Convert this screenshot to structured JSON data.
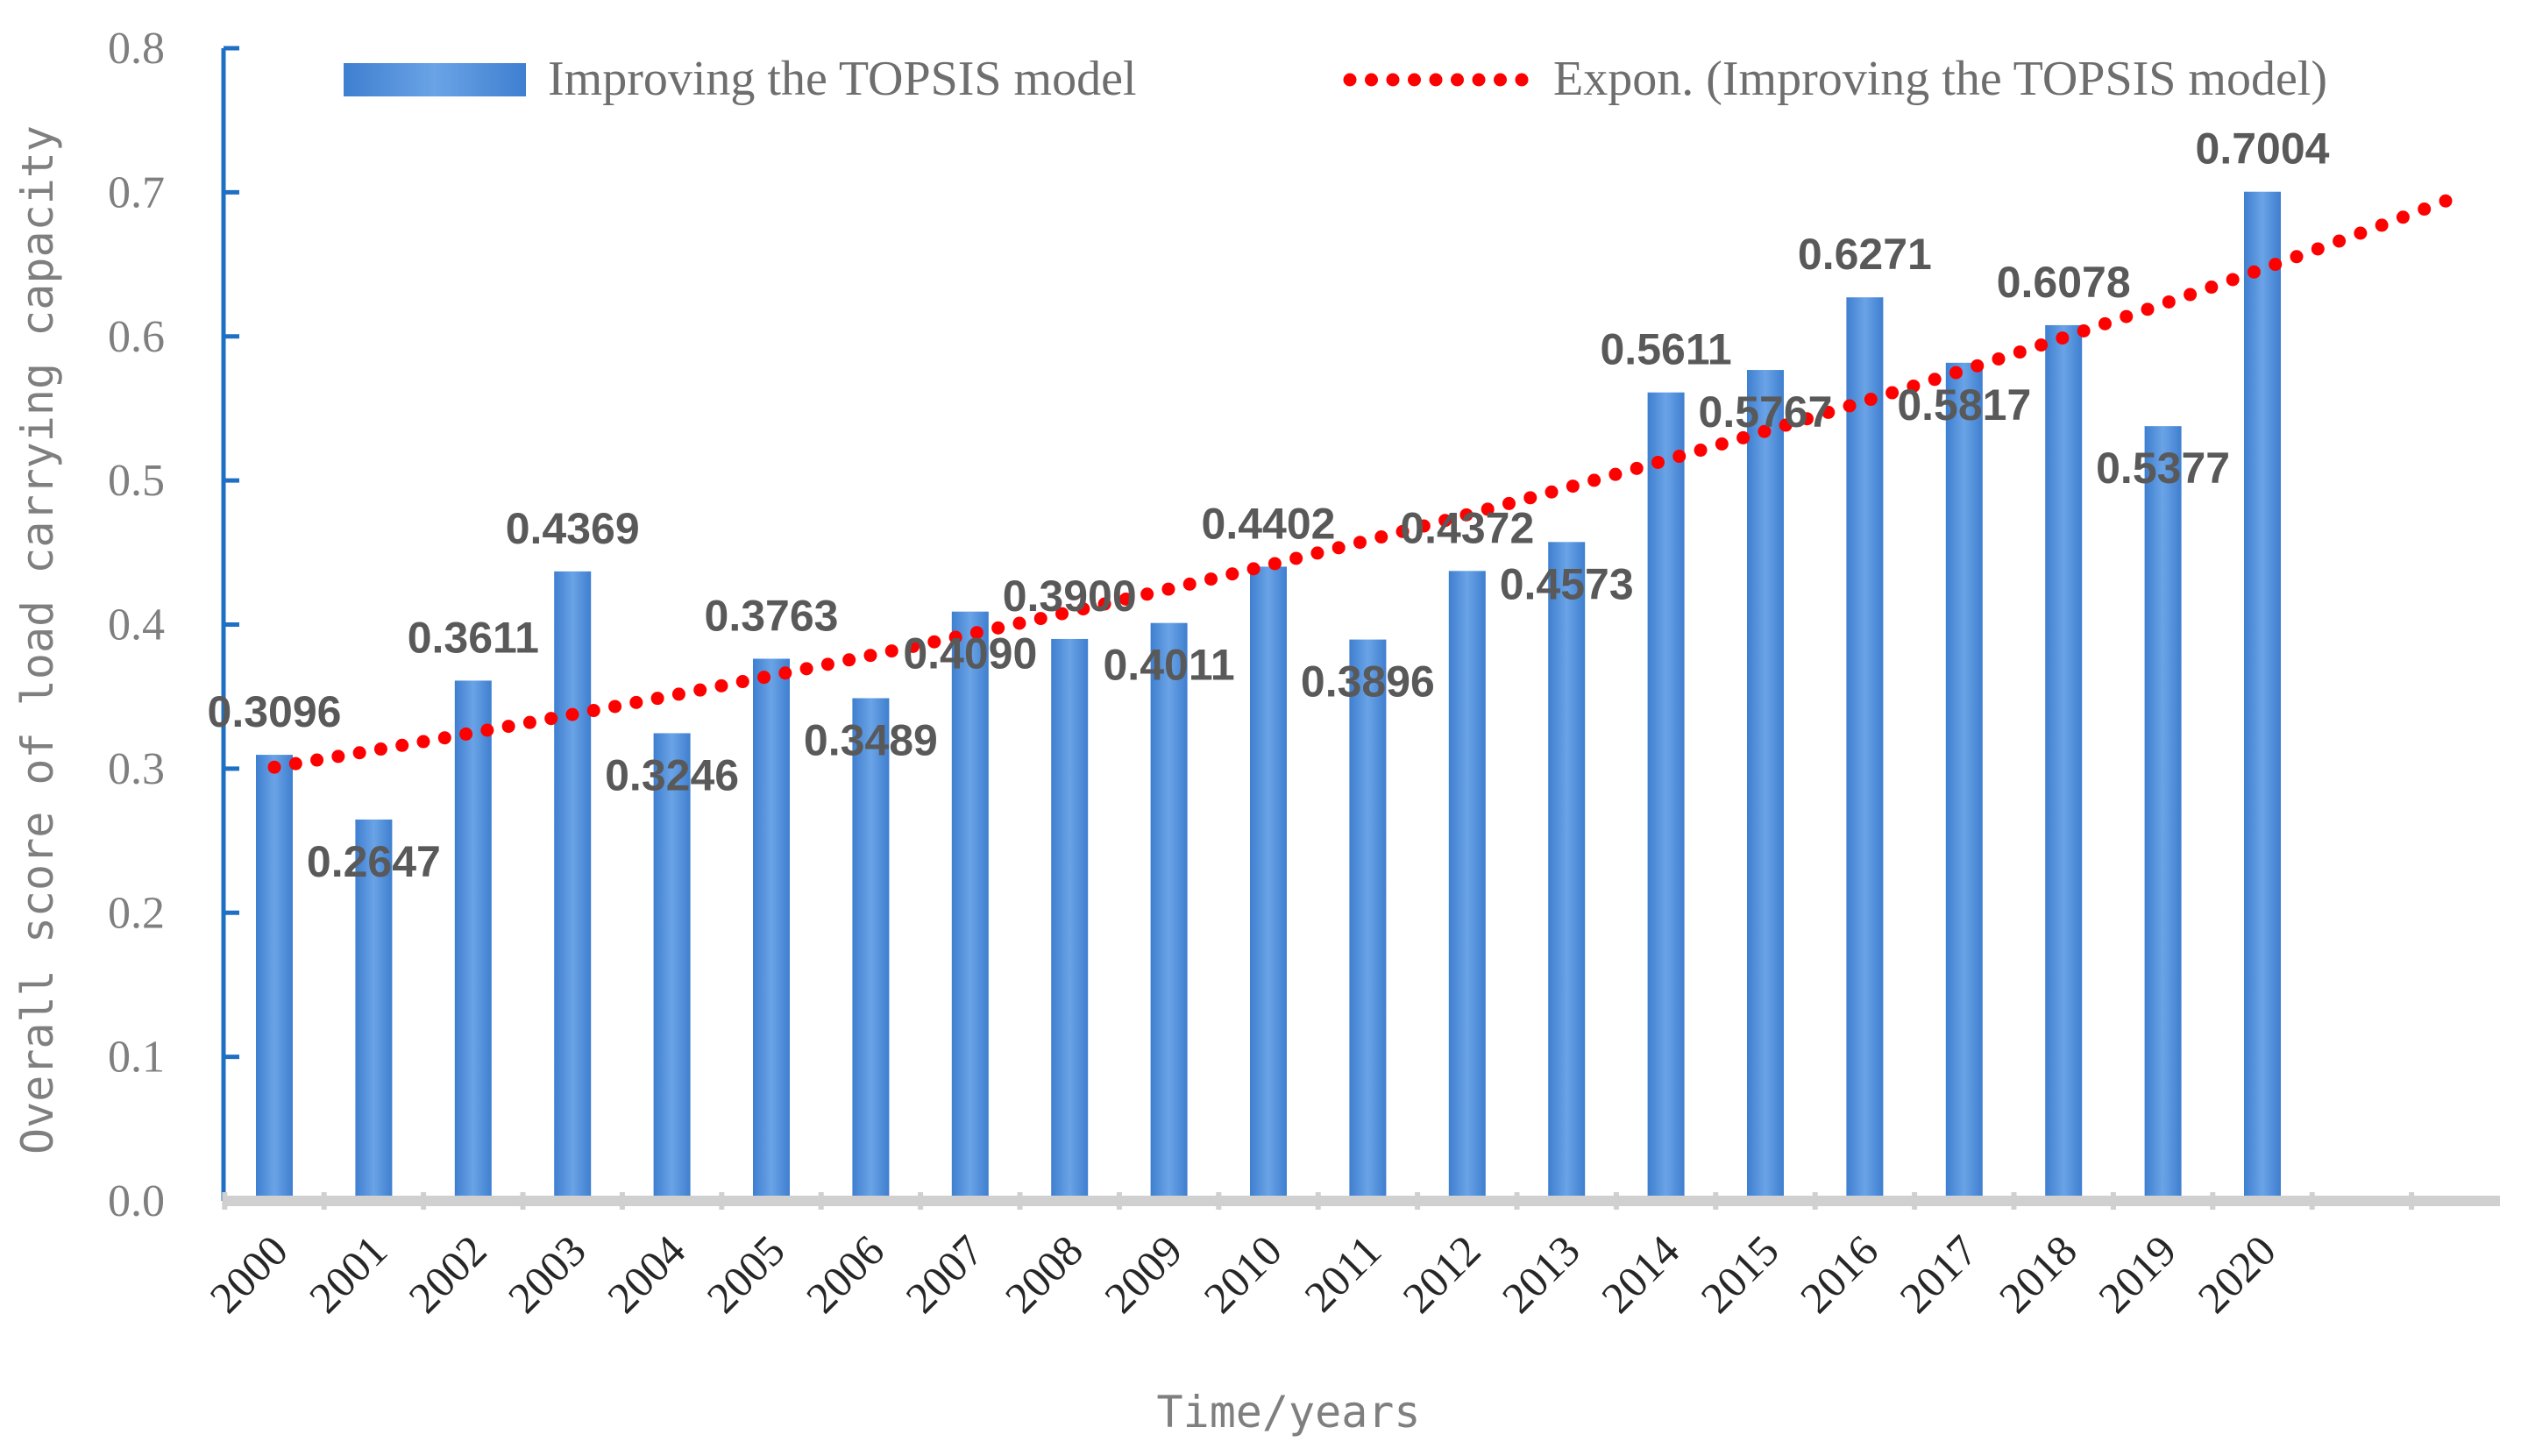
{
  "chart_data": {
    "type": "bar",
    "title": "",
    "xlabel": "Time/years",
    "ylabel": "Overall score of load carrying capacity",
    "ylim": [
      0,
      0.8
    ],
    "y_ticks": [
      "0.0",
      "0.1",
      "0.2",
      "0.3",
      "0.4",
      "0.5",
      "0.6",
      "0.7",
      "0.8"
    ],
    "categories": [
      "2000",
      "2001",
      "2002",
      "2003",
      "2004",
      "2005",
      "2006",
      "2007",
      "2008",
      "2009",
      "2010",
      "2011",
      "2012",
      "2013",
      "2014",
      "2015",
      "2016",
      "2017",
      "2018",
      "2019",
      "2020"
    ],
    "series": [
      {
        "name": "Improving the TOPSIS model",
        "values": [
          0.3096,
          0.2647,
          0.3611,
          0.4369,
          0.3246,
          0.3763,
          0.3489,
          0.409,
          0.39,
          0.4011,
          0.4402,
          0.3896,
          0.4372,
          0.4573,
          0.5611,
          0.5767,
          0.6271,
          0.5817,
          0.6078,
          0.5377,
          0.7004
        ],
        "data_labels": [
          "0.3096",
          "0.2647",
          "0.3611",
          "0.4369",
          "0.3246",
          "0.3763",
          "0.3489",
          "0.4090",
          "0.3900",
          "0.4011",
          "0.4402",
          "0.3896",
          "0.4372",
          "0.4573",
          "0.5611",
          "0.5767",
          "0.6271",
          "0.5817",
          "0.6078",
          "0.5377",
          "0.7004"
        ],
        "label_positions": [
          "above",
          "below",
          "above",
          "above",
          "below",
          "above",
          "below",
          "below",
          "above",
          "below",
          "above",
          "below",
          "above",
          "below",
          "above",
          "below",
          "above",
          "below",
          "above",
          "below",
          "above"
        ],
        "color": "#4a89d6"
      }
    ],
    "trendline": {
      "name": "Expon. (Improving the TOPSIS model)",
      "type": "exponential",
      "start_value": 0.301,
      "end_value": 0.694,
      "color": "#ff0000"
    },
    "legend_position": "top",
    "grid": false,
    "colors": {
      "y_axis": "#1f6fc5",
      "x_axis": "#d0d0d0"
    }
  }
}
